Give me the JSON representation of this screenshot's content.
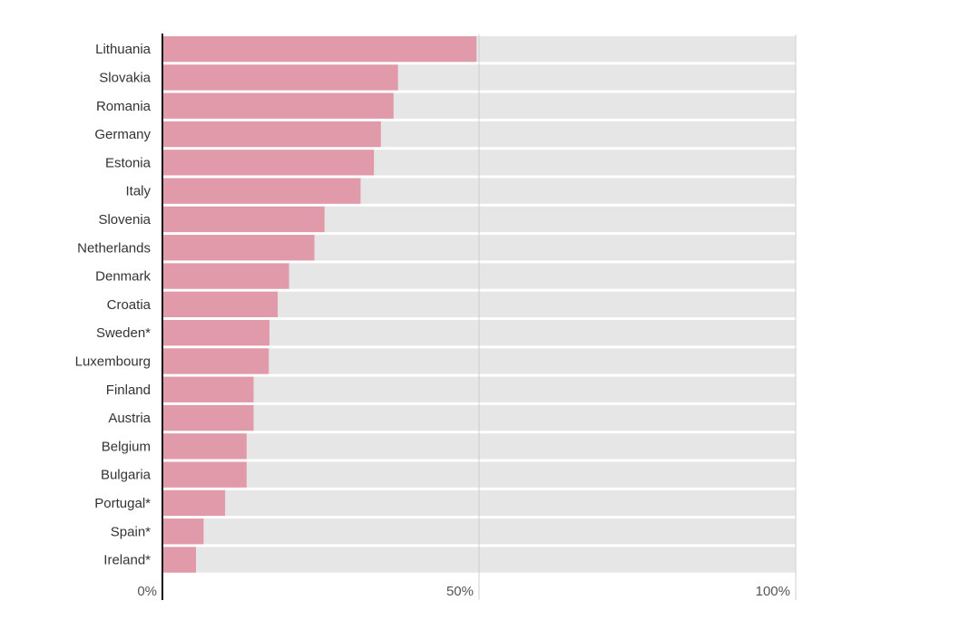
{
  "chart_data": {
    "type": "bar",
    "orientation": "horizontal",
    "categories": [
      "Lithuania",
      "Slovakia",
      "Romania",
      "Germany",
      "Estonia",
      "Italy",
      "Slovenia",
      "Netherlands",
      "Denmark",
      "Croatia",
      "Sweden*",
      "Luxembourg",
      "Finland",
      "Austria",
      "Belgium",
      "Bulgaria",
      "Portugal*",
      "Spain*",
      "Ireland*"
    ],
    "values": [
      49.6,
      37.2,
      36.5,
      34.5,
      33.4,
      31.3,
      25.6,
      24.0,
      20.0,
      18.2,
      16.9,
      16.8,
      14.4,
      14.4,
      13.3,
      13.3,
      9.9,
      6.5,
      5.3
    ],
    "xlim": [
      0,
      100
    ],
    "xticks": [
      0,
      50,
      100
    ],
    "xtick_labels": [
      "0%",
      "50%",
      "100%"
    ],
    "title": "",
    "xlabel": "",
    "ylabel": "",
    "grid": "vertical lines at 50% and 100%",
    "legend": "none",
    "colors": {
      "bar": "#e19aa9",
      "track": "#e6e6e6",
      "axis": "#111111",
      "gridline": "#cfcfcf"
    }
  }
}
